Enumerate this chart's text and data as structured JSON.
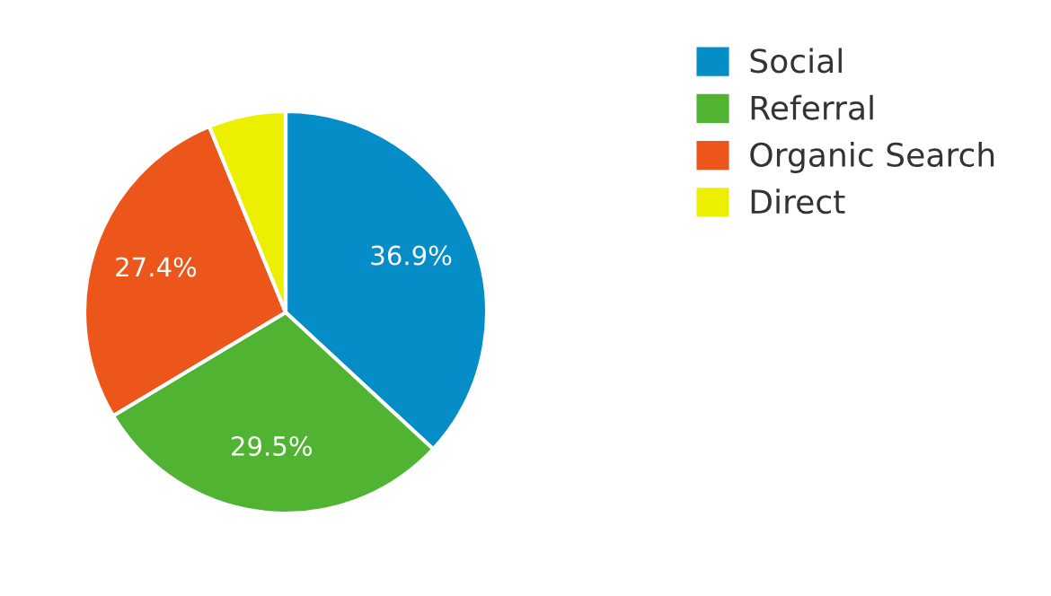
{
  "chart_data": {
    "type": "pie",
    "categories": [
      "Social",
      "Referral",
      "Organic Search",
      "Direct"
    ],
    "values": [
      36.9,
      29.5,
      27.4,
      6.2
    ],
    "colors": [
      "#058dc7",
      "#50b432",
      "#ed561b",
      "#edef00"
    ],
    "value_labels": [
      "36.9%",
      "29.5%",
      "27.4%",
      null
    ],
    "legend": "right"
  }
}
